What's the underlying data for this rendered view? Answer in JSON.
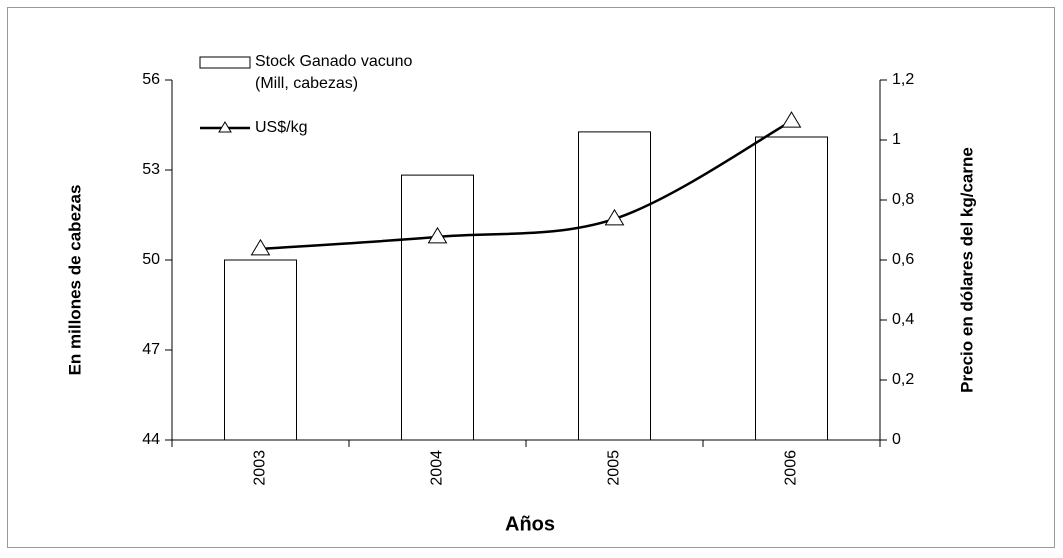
{
  "chart_data": {
    "type": "bar",
    "categories": [
      "2003",
      "2004",
      "2005",
      "2006"
    ],
    "x_label": "Años",
    "y_label": "En millones de cabezas",
    "y2_label": "Precio en dólares del kg/carne",
    "series": [
      {
        "name": "Stock Ganado vacuno (Mill, cabezas)",
        "type": "bar",
        "color": "#ffffff",
        "values": [
          50.0,
          52.83,
          54.27,
          54.1
        ]
      },
      {
        "name": "US$/kg",
        "type": "line",
        "axis": "y2",
        "color": "#000000",
        "values": [
          0.637,
          0.677,
          0.737,
          1.063
        ]
      }
    ],
    "ylim": [
      44,
      56
    ],
    "yticks": [
      44,
      47,
      50,
      53,
      56
    ],
    "y2lim": [
      0,
      1.2
    ],
    "y2ticks": [
      0,
      {
        "value": 0.2,
        "label": "0,2"
      },
      {
        "value": 0.4,
        "label": "0,4"
      },
      {
        "value": 0.6,
        "label": "0,6"
      },
      {
        "value": 0.8,
        "label": "0,8"
      },
      1,
      {
        "value": 1.2,
        "label": "1,2"
      }
    ],
    "legend": "top-left"
  }
}
